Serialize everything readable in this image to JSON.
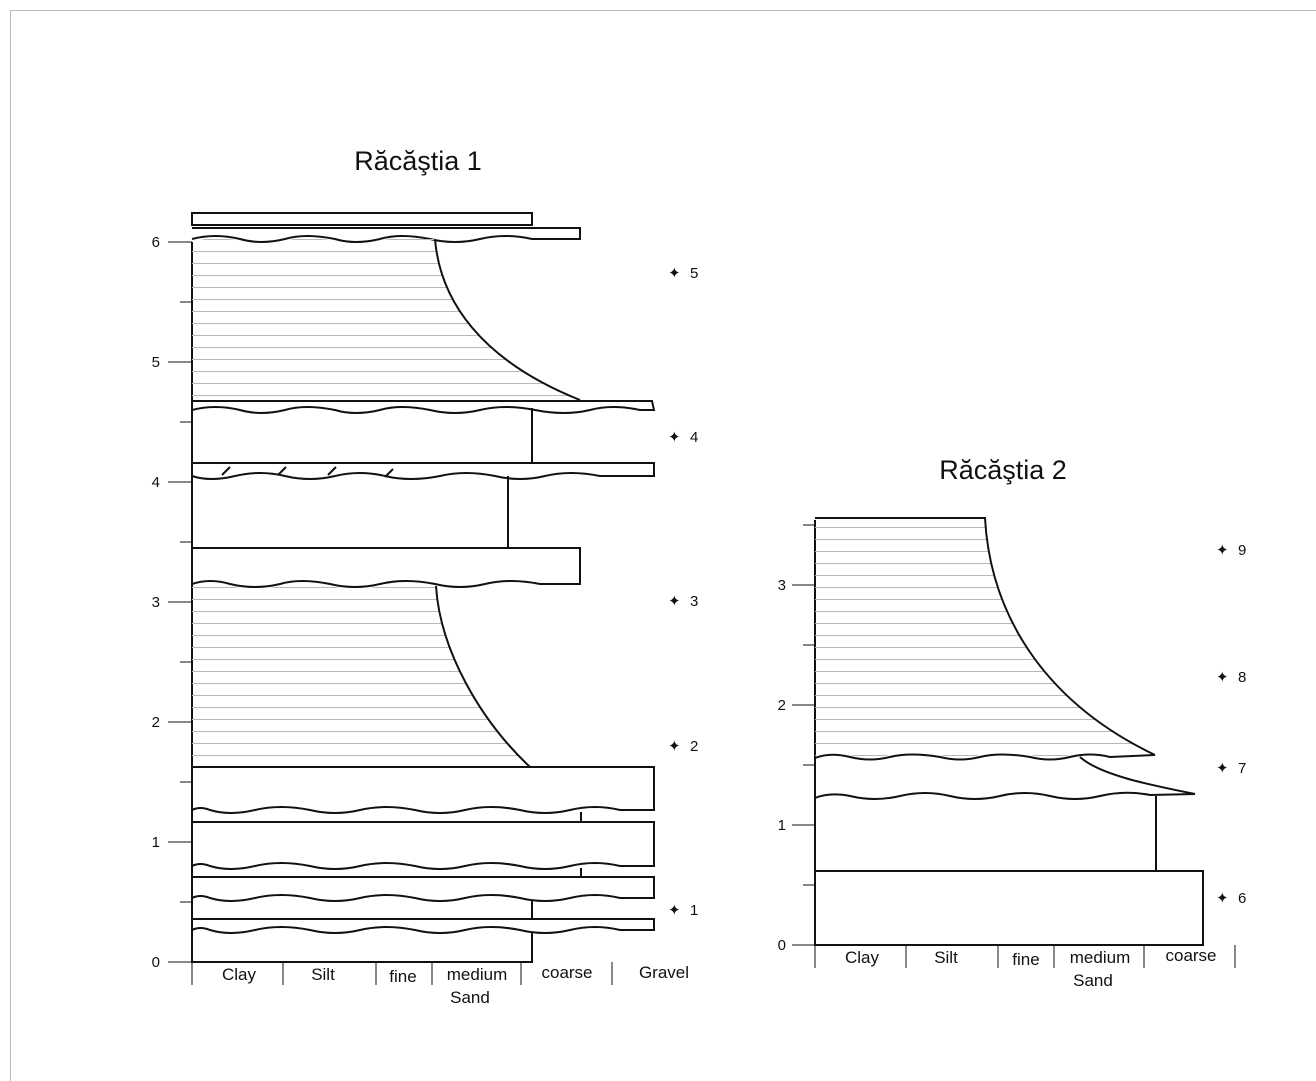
{
  "figure": {
    "columns": [
      {
        "id": "racastia-1",
        "title": "Răcăştia 1",
        "depth_ticks": [
          "0",
          "1",
          "2",
          "3",
          "4",
          "5",
          "6"
        ],
        "grain_labels": [
          "Clay",
          "Silt",
          "fine",
          "medium",
          "coarse",
          "Gravel"
        ],
        "sand_label": "Sand",
        "samples": [
          "1",
          "2",
          "3",
          "4",
          "5"
        ]
      },
      {
        "id": "racastia-2",
        "title": "Răcăştia 2",
        "depth_ticks": [
          "0",
          "1",
          "2",
          "3"
        ],
        "grain_labels": [
          "Clay",
          "Silt",
          "fine",
          "medium",
          "coarse"
        ],
        "sand_label": "Sand",
        "samples": [
          "6",
          "7",
          "8",
          "9"
        ]
      }
    ],
    "sample_symbol": "✦"
  }
}
